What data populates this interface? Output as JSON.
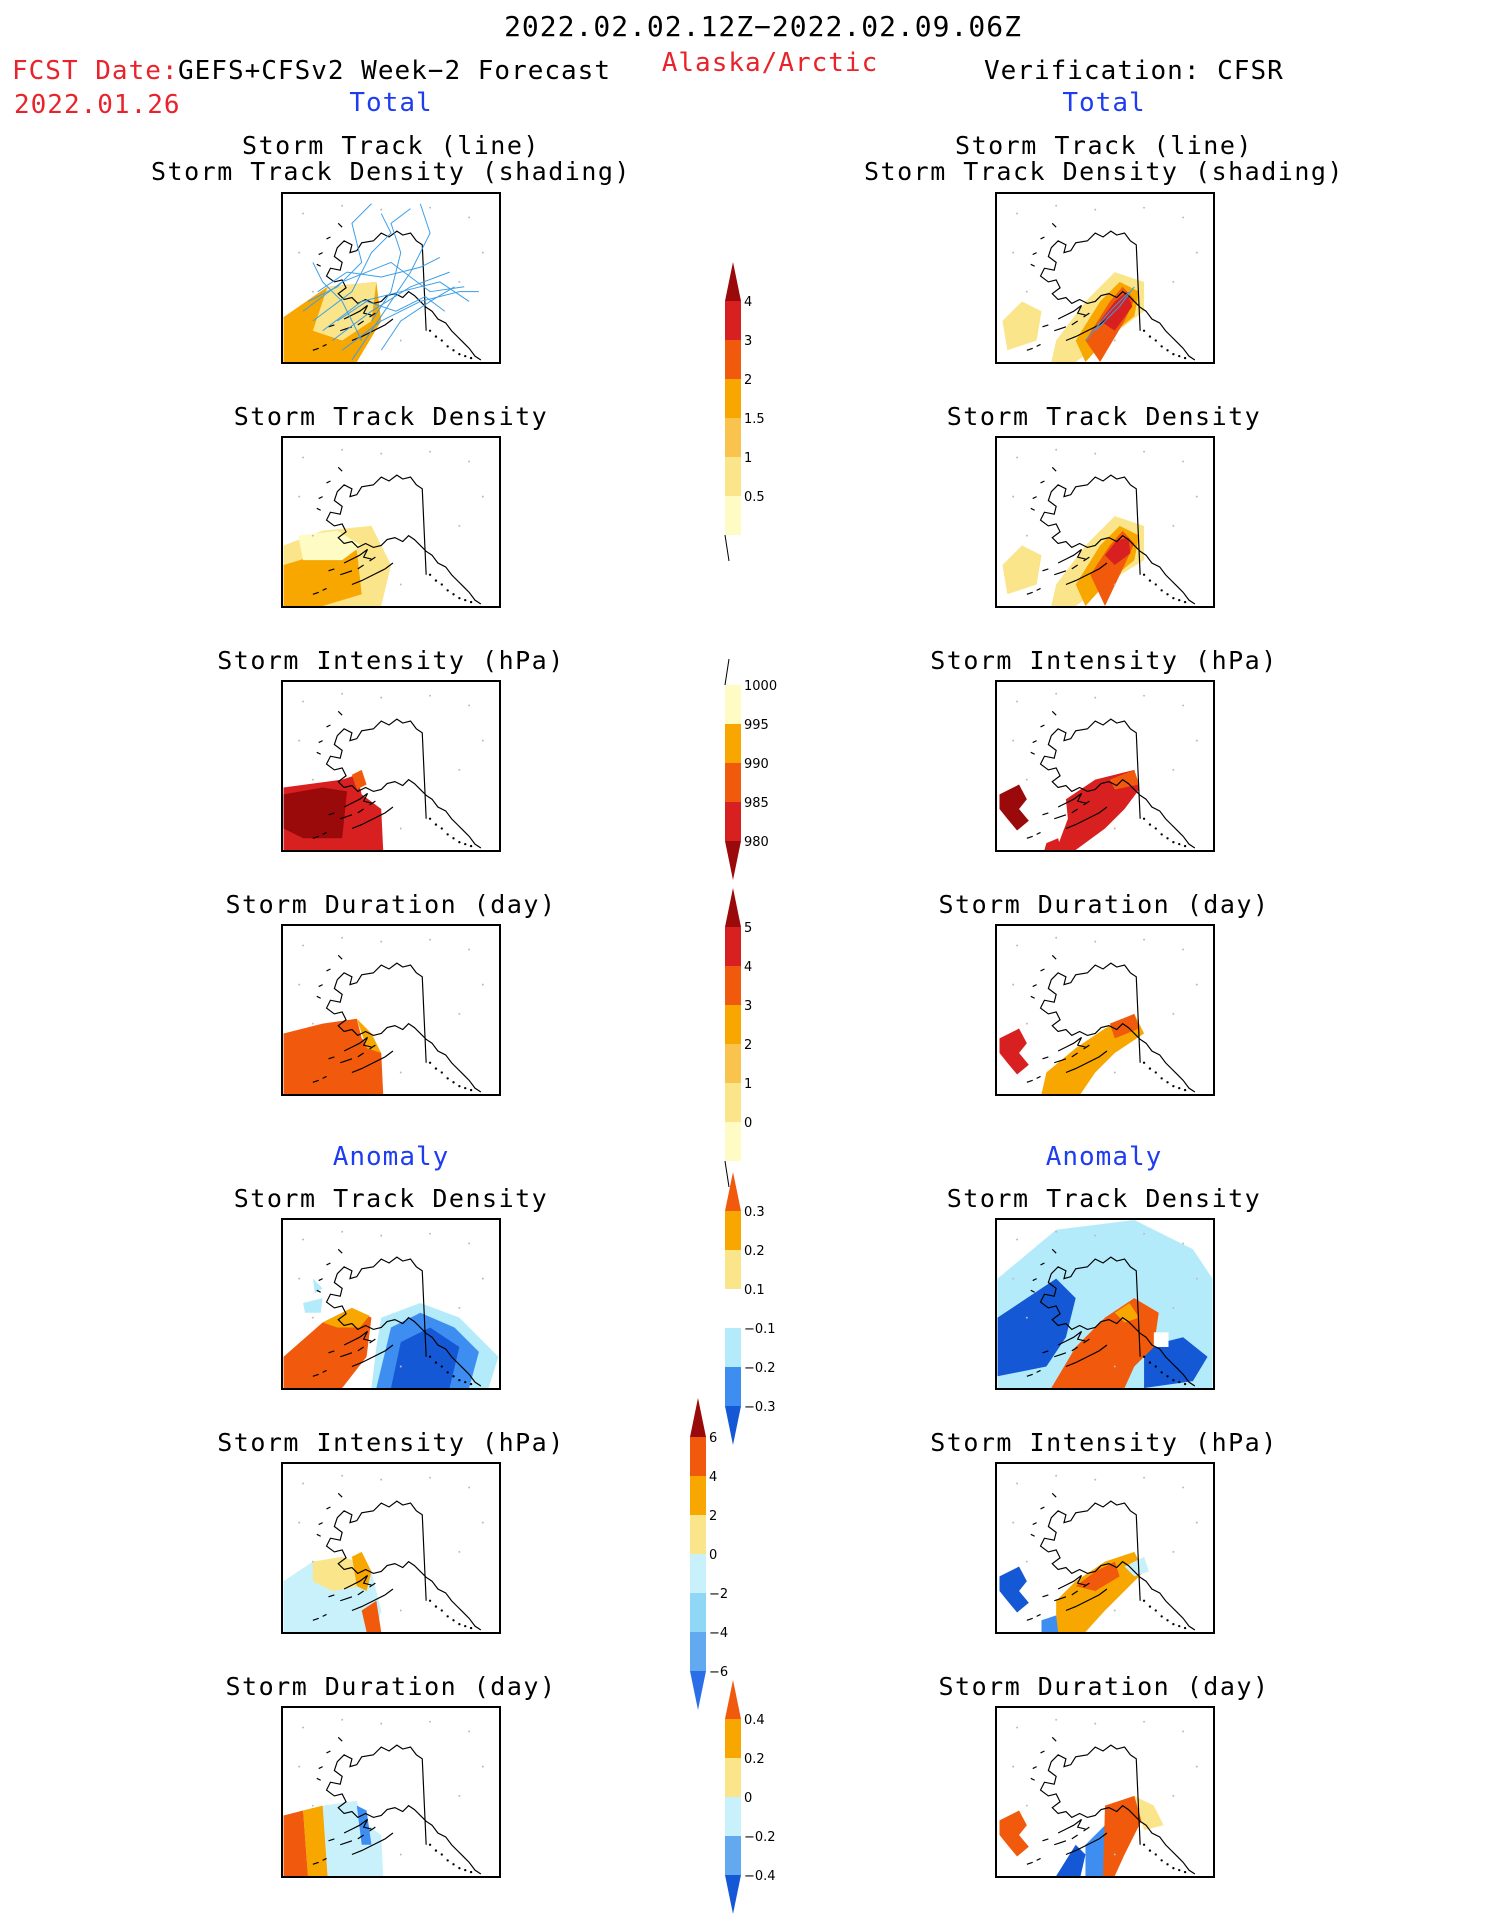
{
  "header": {
    "period": "2022.02.02.12Z−2022.02.09.06Z",
    "fcst_label": "FCST Date:",
    "fcst_model": "GEFS+CFSv2 Week−2 Forecast",
    "fcst_date": "2022.01.26",
    "region": "Alaska/Arctic",
    "verification": "Verification: CFSR"
  },
  "sections": {
    "total": "Total",
    "anomaly": "Anomaly"
  },
  "panel_titles": {
    "track_line": "Storm Track (line)",
    "track_shading": "Storm Track Density (shading)",
    "density": "Storm Track Density",
    "intensity": "Storm Intensity (hPa)",
    "duration": "Storm Duration (day)"
  },
  "colorbars": {
    "density_total": {
      "ticks": [
        "4",
        "3",
        "2",
        "1.5",
        "1",
        "0.5"
      ],
      "colors": [
        "#9a0a0a",
        "#d92020",
        "#f15a0c",
        "#f7a700",
        "#f9c34d",
        "#fbe58a",
        "#fffbc5"
      ]
    },
    "intensity_total": {
      "ticks": [
        "1000",
        "995",
        "990",
        "985",
        "980"
      ],
      "colors": [
        "#fffbc5",
        "#f7a700",
        "#f15a0c",
        "#d92020",
        "#9a0a0a"
      ]
    },
    "duration_total": {
      "ticks": [
        "5",
        "4",
        "3",
        "2",
        "1",
        "0"
      ],
      "colors": [
        "#9a0a0a",
        "#d92020",
        "#f15a0c",
        "#f7a700",
        "#f9c34d",
        "#fbe58a",
        "#fffbc5"
      ]
    },
    "density_anom": {
      "ticks": [
        "0.3",
        "0.2",
        "0.1",
        "−0.1",
        "−0.2",
        "−0.3"
      ],
      "colors": [
        "#f15a0c",
        "#f7a700",
        "#fbe58a",
        "#ffffff",
        "#b3ebfb",
        "#3e8ef2",
        "#1558d6"
      ]
    },
    "intensity_anom": {
      "ticks": [
        "6",
        "4",
        "2",
        "0",
        "−2",
        "−4",
        "−6"
      ],
      "colors": [
        "#9a0a0a",
        "#f15a0c",
        "#f7a700",
        "#fbe58a",
        "#c8f1fb",
        "#8fd7f4",
        "#62a9f0",
        "#2b6fe8"
      ]
    },
    "duration_anom": {
      "ticks": [
        "0.4",
        "0.2",
        "0",
        "−0.2",
        "−0.4"
      ],
      "colors": [
        "#f15a0c",
        "#f7a700",
        "#fbe58a",
        "#c8f1fb",
        "#62a9f0",
        "#1558d6"
      ]
    }
  }
}
